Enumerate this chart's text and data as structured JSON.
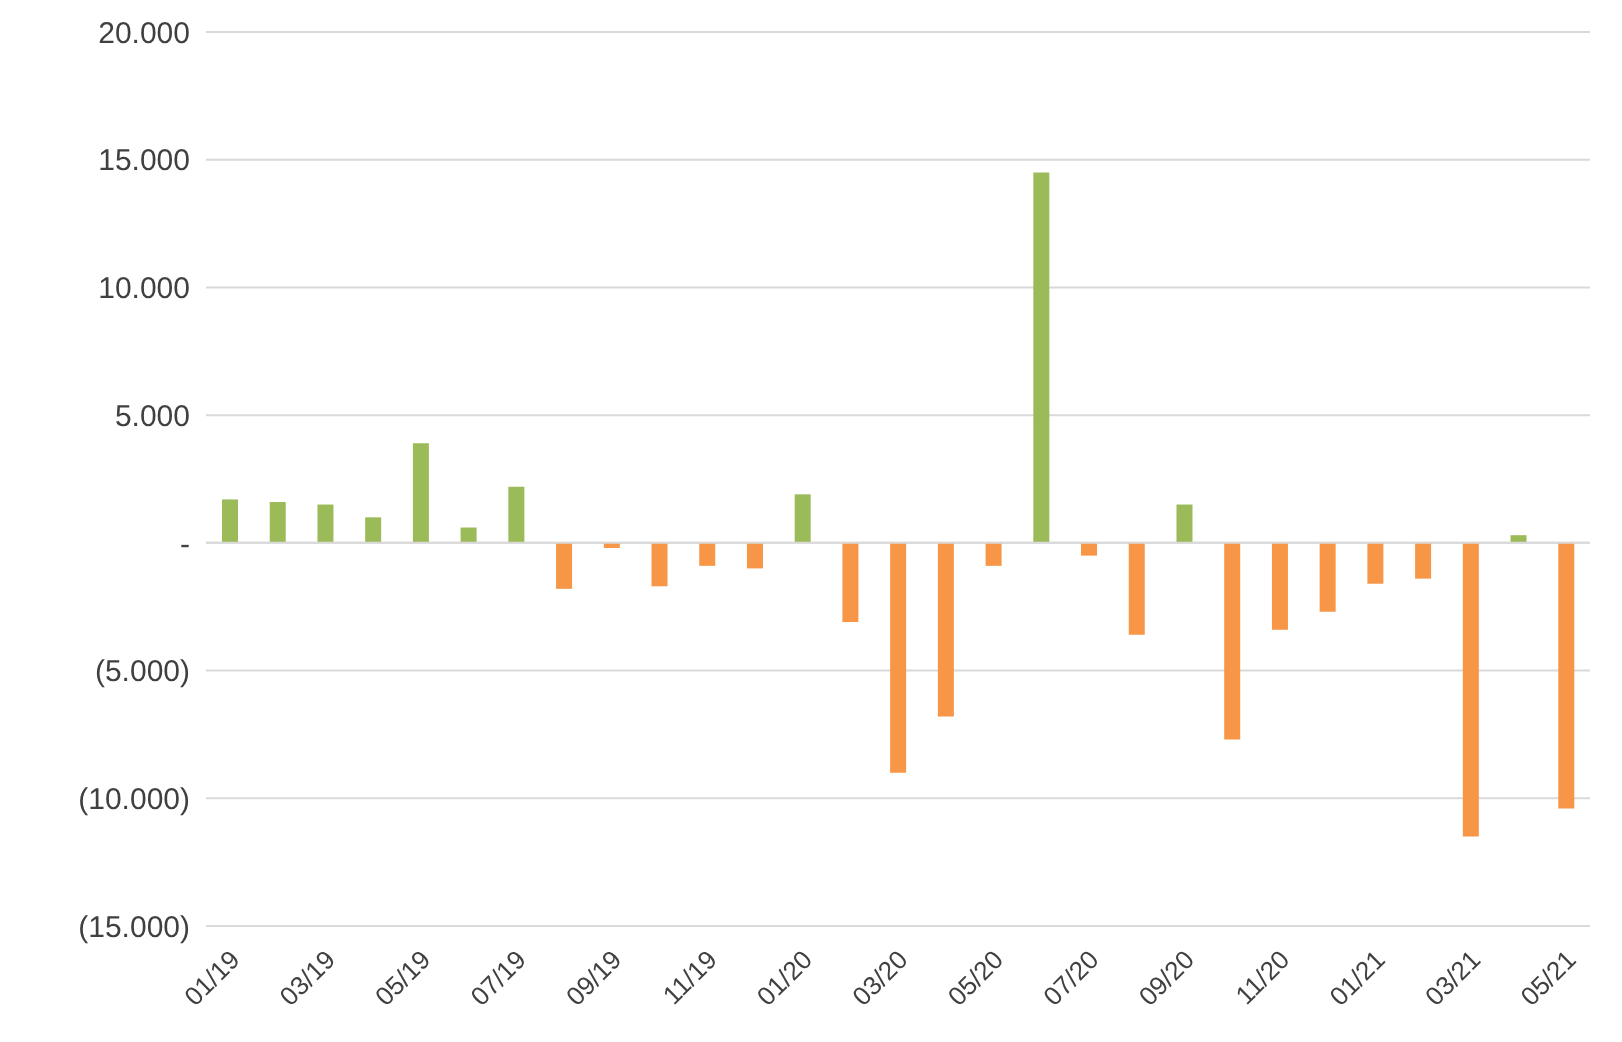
{
  "chart_data": {
    "type": "bar",
    "categories": [
      "01/19",
      null,
      "03/19",
      null,
      "05/19",
      null,
      "07/19",
      null,
      "09/19",
      null,
      "11/19",
      null,
      "01/20",
      null,
      "03/20",
      null,
      "05/20",
      null,
      "07/20",
      null,
      "09/20",
      null,
      "11/20",
      null,
      "01/21",
      null,
      "03/21",
      null,
      "05/21"
    ],
    "values": [
      1700,
      1600,
      1500,
      1000,
      3900,
      600,
      2200,
      -1800,
      -200,
      -1700,
      -900,
      -1000,
      1900,
      -3100,
      -9000,
      -6800,
      -900,
      14500,
      -500,
      -3600,
      1500,
      -7700,
      -3400,
      -2700,
      -1600,
      -1400,
      -11500,
      300,
      -10400
    ],
    "colors": [
      "#9bbb59",
      "#9bbb59",
      "#9bbb59",
      "#9bbb59",
      "#9bbb59",
      "#9bbb59",
      "#9bbb59",
      "#f79646",
      "#f79646",
      "#f79646",
      "#f79646",
      "#f79646",
      "#9bbb59",
      "#f79646",
      "#f79646",
      "#f79646",
      "#f79646",
      "#9bbb59",
      "#f79646",
      "#f79646",
      "#9bbb59",
      "#f79646",
      "#f79646",
      "#f79646",
      "#f79646",
      "#f79646",
      "#f79646",
      "#9bbb59",
      "#f79646"
    ],
    "ylim": [
      -15000,
      20000
    ],
    "yticks": [
      {
        "value": -15000,
        "label": "(15.000)"
      },
      {
        "value": -10000,
        "label": "(10.000)"
      },
      {
        "value": -5000,
        "label": "(5.000)"
      },
      {
        "value": 0,
        "label": "-"
      },
      {
        "value": 5000,
        "label": "5.000"
      },
      {
        "value": 10000,
        "label": "10.000"
      },
      {
        "value": 15000,
        "label": "15.000"
      },
      {
        "value": 20000,
        "label": "20.000"
      }
    ],
    "grid": "y"
  }
}
